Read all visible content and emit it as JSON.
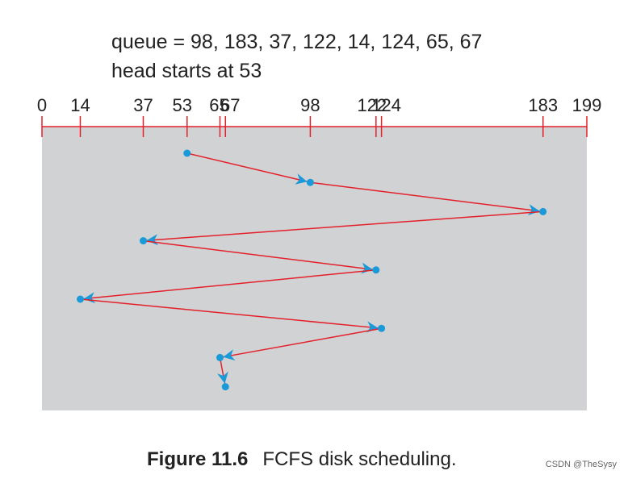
{
  "header": {
    "queue_line": "queue = 98, 183, 37, 122, 14, 124, 65, 67",
    "head_line": "head starts at 53"
  },
  "axis": {
    "min": 0,
    "max": 199,
    "tick_labels": [
      "0",
      "14",
      "37",
      "53",
      "65",
      "67",
      "98",
      "122",
      "124",
      "183",
      "199"
    ]
  },
  "sequence": [
    53,
    98,
    183,
    37,
    122,
    14,
    124,
    65,
    67
  ],
  "colors": {
    "panel": "#d1d2d4",
    "path": "#e4202a",
    "point": "#1a9ad9",
    "axis": "#e4202a"
  },
  "caption": {
    "label": "Figure 11.6",
    "text": "FCFS disk scheduling."
  },
  "watermark": "CSDN @TheSysy"
}
